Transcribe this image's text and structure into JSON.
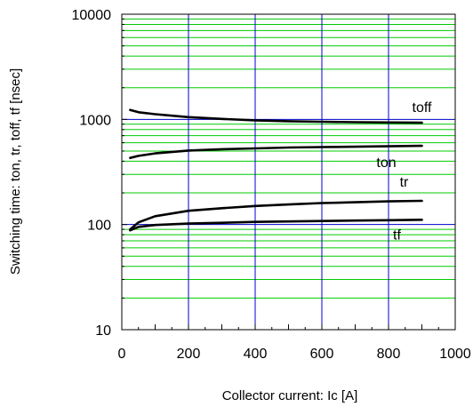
{
  "chart_data": {
    "type": "line",
    "title": "",
    "xlabel": "Collector current: Ic [A]",
    "ylabel": "Switching time: ton, tr, toff, tf [nsec]",
    "xlim": [
      0,
      1000
    ],
    "ylim": [
      10,
      10000
    ],
    "yscale": "log",
    "grid": true,
    "x_ticks": [
      "0",
      "200",
      "400",
      "600",
      "800",
      "1000"
    ],
    "x_tick_values": [
      0,
      200,
      400,
      600,
      800,
      1000
    ],
    "y_ticks": [
      "10",
      "100",
      "1000",
      "10000"
    ],
    "y_tick_values": [
      10,
      100,
      1000,
      10000
    ],
    "colors": {
      "grid_minor": "#00cc00",
      "grid_major": "#0000cc",
      "curve": "#000000"
    },
    "series": [
      {
        "name": "toff",
        "x": [
          25,
          50,
          100,
          200,
          300,
          400,
          500,
          600,
          700,
          800,
          900
        ],
        "y": [
          1230,
          1170,
          1120,
          1050,
          1010,
          980,
          960,
          950,
          940,
          935,
          930
        ]
      },
      {
        "name": "ton",
        "x": [
          25,
          50,
          100,
          200,
          300,
          400,
          500,
          600,
          700,
          800,
          900
        ],
        "y": [
          430,
          450,
          475,
          505,
          520,
          530,
          540,
          545,
          550,
          555,
          560
        ]
      },
      {
        "name": "tr",
        "x": [
          25,
          50,
          100,
          200,
          300,
          400,
          500,
          600,
          700,
          800,
          900
        ],
        "y": [
          90,
          105,
          120,
          135,
          143,
          150,
          155,
          160,
          163,
          166,
          168
        ]
      },
      {
        "name": "tf",
        "x": [
          25,
          50,
          100,
          200,
          300,
          400,
          500,
          600,
          700,
          800,
          900
        ],
        "y": [
          88,
          95,
          99,
          102,
          104,
          106,
          107,
          108,
          109,
          110,
          111
        ]
      }
    ]
  }
}
